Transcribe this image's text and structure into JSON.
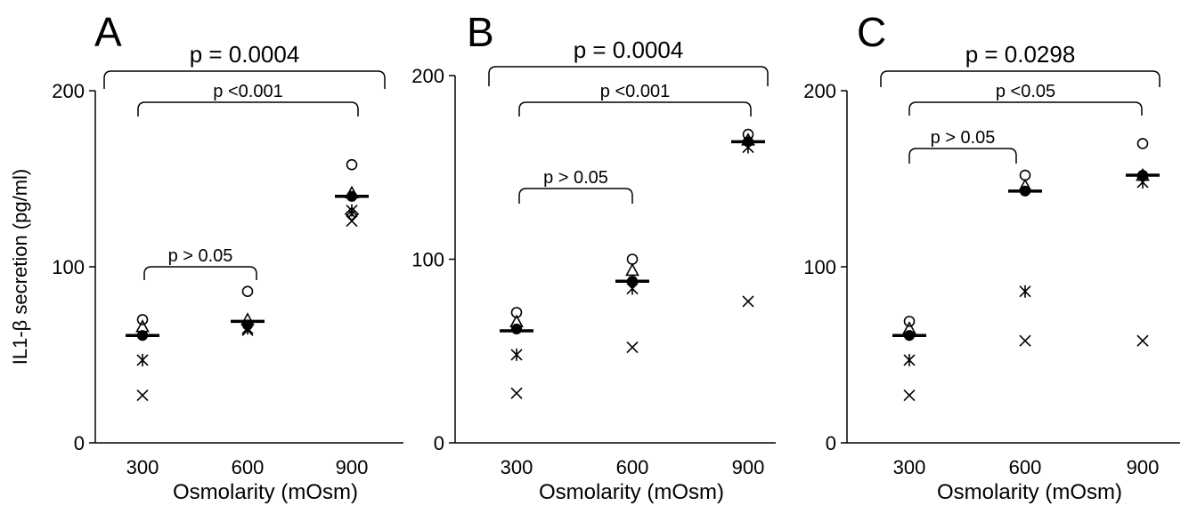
{
  "colors": {
    "foreground": "#000000",
    "background": "#ffffff"
  },
  "ylabel": "IL1-β secretion (pg/ml)",
  "chart_data": [
    {
      "type": "scatter",
      "panel_label": "A",
      "xlabel": "Osmolarity (mOsm)",
      "categories": [
        "300",
        "600",
        "900"
      ],
      "ylim": [
        0,
        200
      ],
      "yticks": [
        "0",
        "100",
        "200"
      ],
      "markers": [
        "open-circle",
        "open-triangle",
        "filled-circle",
        "asterisk",
        "cross",
        "diamond-cross"
      ],
      "values": [
        [
          70,
          66,
          61,
          47,
          27,
          null
        ],
        [
          86,
          70,
          67,
          65,
          64,
          null
        ],
        [
          158,
          142,
          140,
          132,
          126,
          130
        ]
      ],
      "means": [
        61,
        69,
        140
      ],
      "comparisons": [
        {
          "label": "p = 0.0004",
          "from": "300",
          "to": "900",
          "level": "top"
        },
        {
          "label": "p <0.001",
          "from": "300",
          "to": "900",
          "level": "middle"
        },
        {
          "label": "p > 0.05",
          "from": "300",
          "to": "600",
          "level": "low"
        }
      ]
    },
    {
      "type": "scatter",
      "panel_label": "B",
      "xlabel": "Osmolarity (mOsm)",
      "categories": [
        "300",
        "600",
        "900"
      ],
      "ylim": [
        0,
        200
      ],
      "yticks": [
        "0",
        "100",
        "200"
      ],
      "markers": [
        "open-circle",
        "open-triangle",
        "filled-circle",
        "asterisk",
        "cross"
      ],
      "values": [
        [
          71,
          66,
          62,
          48,
          27
        ],
        [
          100,
          94,
          88,
          84,
          52
        ],
        [
          168,
          165,
          164,
          161,
          77
        ]
      ],
      "means": [
        61,
        88,
        164
      ],
      "comparisons": [
        {
          "label": "p = 0.0004",
          "from": "300",
          "to": "900",
          "level": "top"
        },
        {
          "label": "p <0.001",
          "from": "300",
          "to": "900",
          "level": "middle"
        },
        {
          "label": "p > 0.05",
          "from": "300",
          "to": "600",
          "level": "low"
        }
      ]
    },
    {
      "type": "scatter",
      "panel_label": "C",
      "xlabel": "Osmolarity (mOsm)",
      "categories": [
        "300",
        "600",
        "900"
      ],
      "ylim": [
        0,
        200
      ],
      "yticks": [
        "0",
        "100",
        "200"
      ],
      "markers": [
        "open-circle",
        "open-triangle",
        "filled-circle",
        "asterisk",
        "cross"
      ],
      "values": [
        [
          69,
          65,
          61,
          47,
          27
        ],
        [
          152,
          146,
          143,
          86,
          58
        ],
        [
          170,
          152,
          152,
          148,
          58
        ]
      ],
      "means": [
        61,
        143,
        152
      ],
      "comparisons": [
        {
          "label": "p = 0.0298",
          "from": "300",
          "to": "900",
          "level": "top"
        },
        {
          "label": "p <0.05",
          "from": "300",
          "to": "900",
          "level": "middle"
        },
        {
          "label": "p > 0.05",
          "from": "300",
          "to": "600",
          "level": "low"
        }
      ]
    }
  ]
}
